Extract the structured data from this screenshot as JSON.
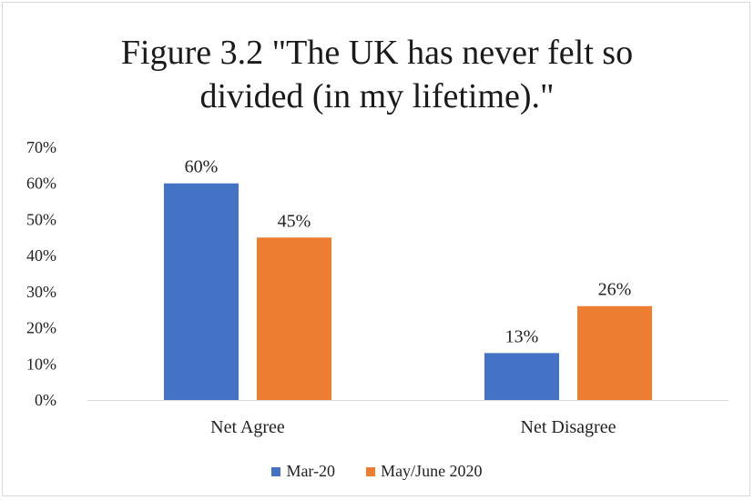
{
  "chart_data": {
    "type": "bar",
    "title_lines": [
      "Figure 3.2 \"The UK has never felt so",
      "divided (in my lifetime).\""
    ],
    "categories": [
      "Net Agree",
      "Net Disagree"
    ],
    "series": [
      {
        "name": "Mar-20",
        "values": [
          60,
          13
        ],
        "labels": [
          "60%",
          "13%"
        ],
        "color": "#4472c4"
      },
      {
        "name": "May/June 2020",
        "values": [
          45,
          26
        ],
        "labels": [
          "45%",
          "26%"
        ],
        "color": "#ed7d31"
      }
    ],
    "ylim": [
      0,
      70
    ],
    "yticks": [
      0,
      10,
      20,
      30,
      40,
      50,
      60,
      70
    ],
    "ytick_labels": [
      "0%",
      "10%",
      "20%",
      "30%",
      "40%",
      "50%",
      "60%",
      "70%"
    ],
    "grid": false,
    "legend_position": "bottom"
  }
}
